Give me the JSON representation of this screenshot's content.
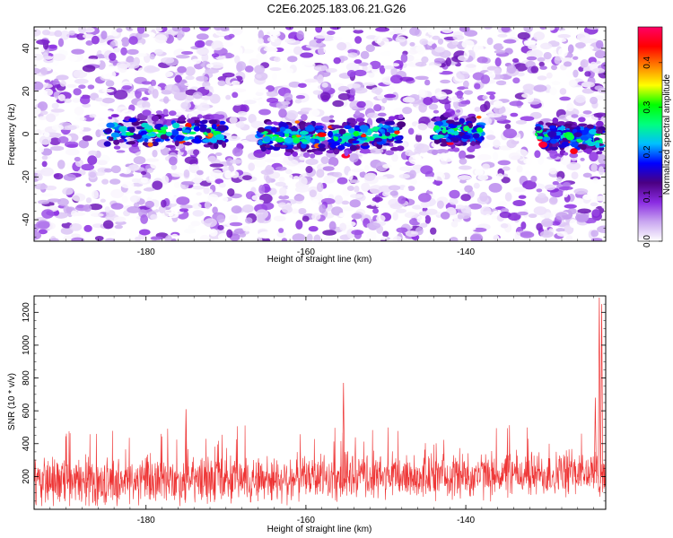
{
  "figure": {
    "title": "C2E6.2025.183.06.21.G26"
  },
  "chart_data": [
    {
      "type": "heatmap",
      "xlabel": "Height of straight line (km)",
      "ylabel": "Frequency (Hz)",
      "xlim": [
        -194,
        -122.5
      ],
      "ylim": [
        -50,
        50
      ],
      "xticks": [
        -180,
        -160,
        -140
      ],
      "yticks": [
        -40,
        -20,
        0,
        20,
        40
      ],
      "colorbar": {
        "label": "Normalized spectral amplitude",
        "range": [
          0,
          0.48
        ],
        "ticks": [
          0.0,
          0.1,
          0.2,
          0.3,
          0.4
        ],
        "colormap": [
          "#ffffff",
          "#c9a6f0",
          "#8a2be2",
          "#4b0082",
          "#0000ff",
          "#00bfff",
          "#00ff7f",
          "#00ff00",
          "#ffff00",
          "#ff8000",
          "#ff0000",
          "#ff0066"
        ]
      },
      "signal_band": {
        "center_hz": 0,
        "half_width_hz": 6,
        "segments_km": [
          [
            -185,
            -170
          ],
          [
            -166,
            -158
          ],
          [
            -157,
            -148
          ],
          [
            -144,
            -138
          ],
          [
            -131,
            -123
          ]
        ],
        "peak_amplitude": 0.46
      }
    },
    {
      "type": "line",
      "xlabel": "Height of straight line (km)",
      "ylabel": "SNR (10 * v/v)",
      "xlim": [
        -194,
        -122.5
      ],
      "ylim": [
        0,
        1300
      ],
      "xticks": [
        -180,
        -160,
        -140
      ],
      "yticks": [
        200,
        400,
        600,
        800,
        1000,
        1200
      ],
      "series": [
        {
          "color": "#ee3333",
          "baseline_snr": 160,
          "noise_range": [
            60,
            600
          ],
          "peaks": [
            {
              "x": -155.3,
              "y": 770
            },
            {
              "x": -175.0,
              "y": 610
            },
            {
              "x": -123.3,
              "y": 1290
            },
            {
              "x": -123.0,
              "y": 1250
            },
            {
              "x": -123.8,
              "y": 680
            }
          ]
        }
      ]
    }
  ]
}
